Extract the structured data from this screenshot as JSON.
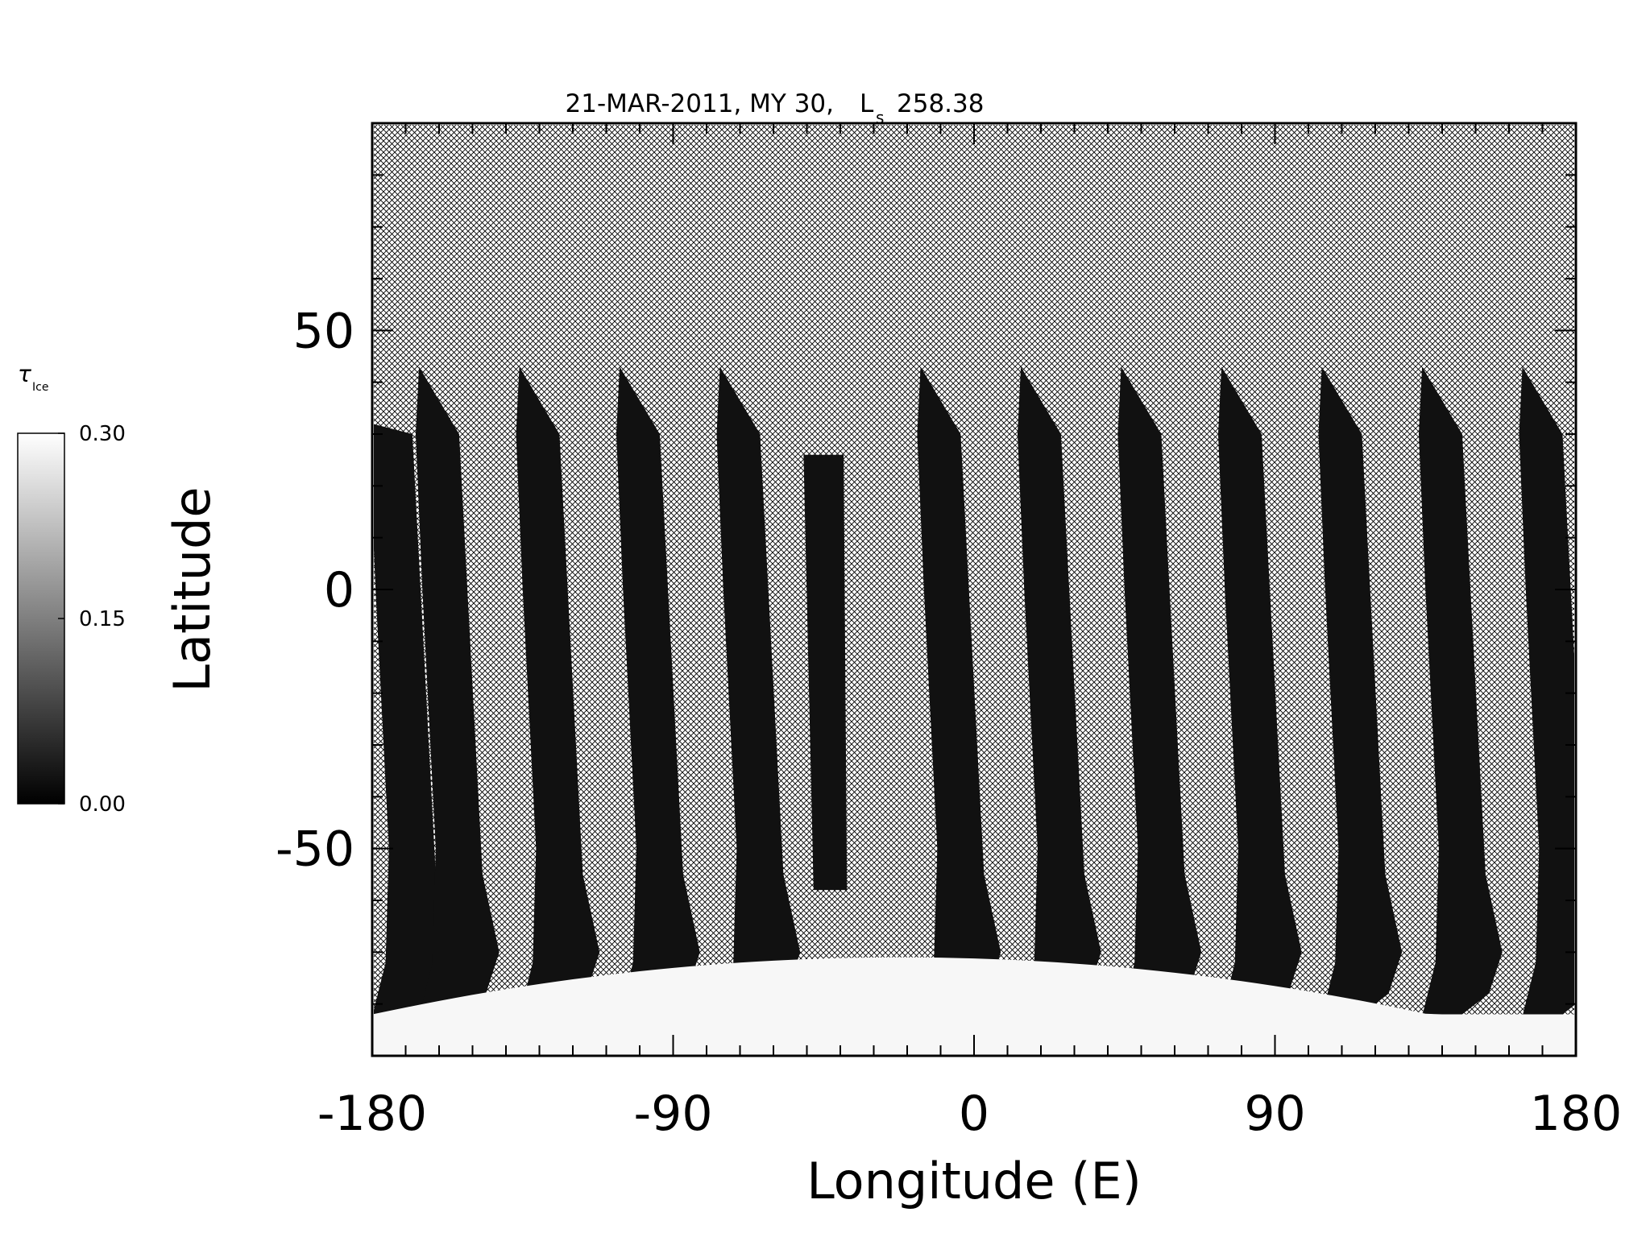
{
  "chart_data": {
    "type": "heatmap",
    "title": "21-MAR-2011, MY 30,",
    "title_ls_symbol": "L",
    "title_ls_subscript": "s",
    "title_ls_value": "258.38",
    "xlabel": "Longitude (E)",
    "ylabel": "Latitude",
    "xlim": [
      -180,
      180
    ],
    "ylim": [
      -90,
      90
    ],
    "x_ticks": [
      "-180",
      "-90",
      "0",
      "90",
      "180"
    ],
    "x_tick_values": [
      -180,
      -90,
      0,
      90,
      180
    ],
    "y_ticks": [
      "50",
      "0",
      "-50"
    ],
    "y_tick_values": [
      50,
      0,
      -50
    ],
    "x_minor_step": 10,
    "y_minor_step": 10,
    "no_data_fill": "crosshatch",
    "colorbar": {
      "label_symbol": "τ",
      "label_subscript": "Ice",
      "min": 0.0,
      "max": 0.3,
      "tick_labels": [
        "0.30",
        "0.15",
        "0.00"
      ],
      "tick_values": [
        0.3,
        0.15,
        0.0
      ],
      "color_min": "#000000",
      "color_max": "#ffffff"
    },
    "swaths": [
      {
        "lon_top": -180,
        "lat_top": 32
      },
      {
        "lon_top": -166,
        "lat_top": 43
      },
      {
        "lon_top": -136,
        "lat_top": 43
      },
      {
        "lon_top": -106,
        "lat_top": 43
      },
      {
        "lon_top": -76,
        "lat_top": 43
      },
      {
        "lon_top": -16,
        "lat_top": 43
      },
      {
        "lon_top": 14,
        "lat_top": 43
      },
      {
        "lon_top": 44,
        "lat_top": 43
      },
      {
        "lon_top": 74,
        "lat_top": 43
      },
      {
        "lon_top": 104,
        "lat_top": 43
      },
      {
        "lon_top": 134,
        "lat_top": 43
      },
      {
        "lon_top": 164,
        "lat_top": 43
      }
    ],
    "short_swath": {
      "lon_left": -51,
      "lon_right": -39,
      "lat_top": 26,
      "lat_bottom": -58
    },
    "south_cap": {
      "lat_edge_min": -82,
      "lat_edge_max": -71,
      "peak_lon": -22,
      "value": 0.29
    },
    "swath_value": 0.02
  }
}
